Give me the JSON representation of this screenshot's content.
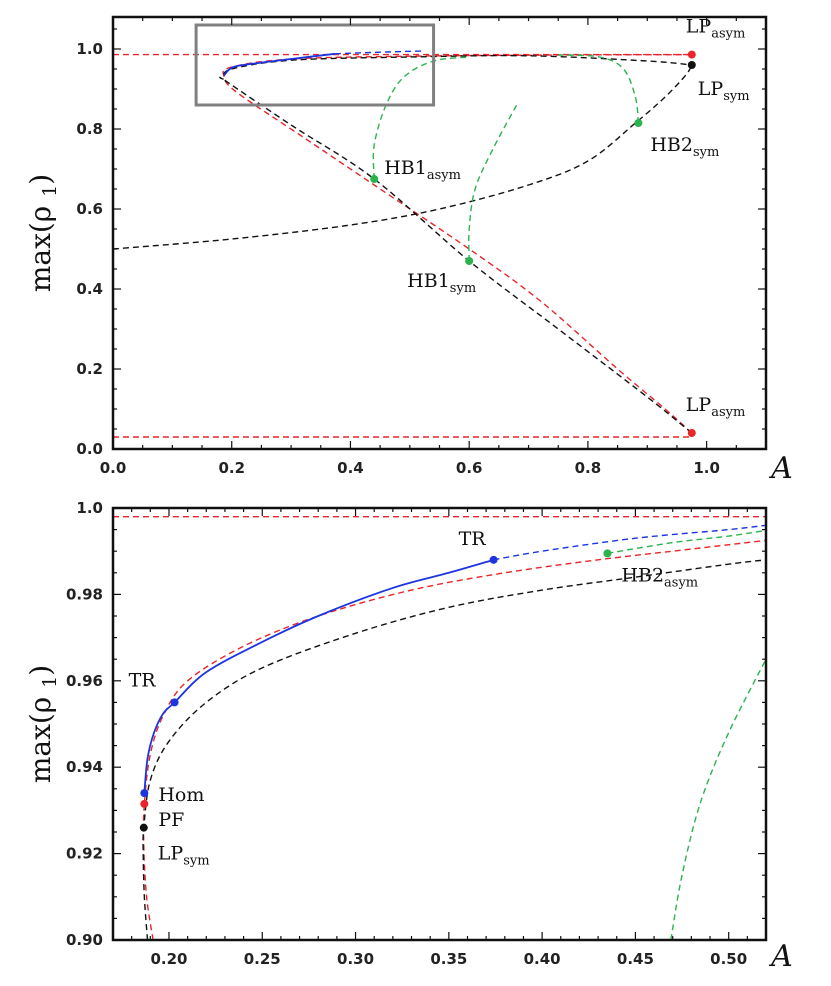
{
  "colors": {
    "red": "#e8252a",
    "black": "#111111",
    "blue": "#1c35e0",
    "green": "#2bb34f",
    "gray": "#808080"
  },
  "chart_data": [
    {
      "type": "line",
      "panel": "top",
      "xlabel": "A",
      "ylabel": "max(ρ1)",
      "xlim": [
        0,
        1.1
      ],
      "ylim": [
        0,
        1.08
      ],
      "xticks": [
        "0.0",
        "0.2",
        "0.4",
        "0.6",
        "0.8",
        "1.0"
      ],
      "yticks": [
        "0.0",
        "0.2",
        "0.4",
        "0.6",
        "0.8",
        "1.0"
      ],
      "inset_box": {
        "x": [
          0.14,
          0.54
        ],
        "y": [
          0.86,
          1.06
        ]
      },
      "series": [
        {
          "name": "asym-upper-dashed",
          "color": "red",
          "style": "dashed",
          "points": [
            [
              0,
              0.986
            ],
            [
              0.2,
              0.986
            ],
            [
              0.6,
              0.986
            ],
            [
              0.975,
              0.986
            ]
          ]
        },
        {
          "name": "asym-lower-dashed",
          "color": "red",
          "style": "dashed",
          "points": [
            [
              0,
              0.03
            ],
            [
              0.5,
              0.03
            ],
            [
              0.975,
              0.03
            ]
          ]
        },
        {
          "name": "asym-branch",
          "color": "red",
          "style": "dashed",
          "points": [
            [
              0.975,
              0.04
            ],
            [
              0.93,
              0.1
            ],
            [
              0.85,
              0.2
            ],
            [
              0.72,
              0.37
            ],
            [
              0.6,
              0.5
            ],
            [
              0.45,
              0.65
            ],
            [
              0.32,
              0.78
            ],
            [
              0.21,
              0.89
            ],
            [
              0.187,
              0.931
            ],
            [
              0.2,
              0.955
            ],
            [
              0.3,
              0.975
            ],
            [
              0.5,
              0.982
            ],
            [
              0.75,
              0.985
            ],
            [
              0.975,
              0.986
            ]
          ]
        },
        {
          "name": "sym-branch",
          "color": "black",
          "style": "dashed",
          "points": [
            [
              0.975,
              0.04
            ],
            [
              0.9,
              0.13
            ],
            [
              0.75,
              0.3
            ],
            [
              0.6,
              0.47
            ],
            [
              0.44,
              0.675
            ],
            [
              0.3,
              0.81
            ],
            [
              0.19,
              0.92
            ],
            [
              0.186,
              0.926
            ],
            [
              0.2,
              0.95
            ],
            [
              0.3,
              0.972
            ],
            [
              0.5,
              0.98
            ],
            [
              0.7,
              0.983
            ],
            [
              0.9,
              0.97
            ],
            [
              0.975,
              0.96
            ]
          ]
        },
        {
          "name": "sym-lower-branch",
          "color": "black",
          "style": "dashed",
          "points": [
            [
              0,
              0.5
            ],
            [
              0.2,
              0.525
            ],
            [
              0.4,
              0.56
            ],
            [
              0.55,
              0.6
            ],
            [
              0.7,
              0.66
            ],
            [
              0.8,
              0.72
            ],
            [
              0.88,
              0.815
            ],
            [
              0.93,
              0.88
            ],
            [
              0.965,
              0.935
            ],
            [
              0.975,
              0.96
            ]
          ]
        },
        {
          "name": "periodic-stable",
          "color": "blue",
          "style": "solid",
          "points": [
            [
              0.187,
              0.934
            ],
            [
              0.203,
              0.955
            ],
            [
              0.25,
              0.966
            ],
            [
              0.3,
              0.975
            ],
            [
              0.374,
              0.988
            ]
          ]
        },
        {
          "name": "periodic-unstable",
          "color": "blue",
          "style": "dashed",
          "points": [
            [
              0.374,
              0.988
            ],
            [
              0.45,
              0.992
            ],
            [
              0.52,
              0.995
            ]
          ]
        },
        {
          "name": "HB1-asym-orbit",
          "color": "green",
          "style": "dashed",
          "points": [
            [
              0.44,
              0.675
            ],
            [
              0.44,
              0.76
            ],
            [
              0.46,
              0.86
            ],
            [
              0.49,
              0.93
            ],
            [
              0.54,
              0.97
            ],
            [
              0.6,
              0.98
            ]
          ]
        },
        {
          "name": "HB1-sym-orbit",
          "color": "green",
          "style": "dashed",
          "points": [
            [
              0.6,
              0.47
            ],
            [
              0.6,
              0.55
            ],
            [
              0.61,
              0.65
            ],
            [
              0.64,
              0.75
            ],
            [
              0.68,
              0.86
            ]
          ]
        },
        {
          "name": "HB2-sym-orbit",
          "color": "green",
          "style": "dashed",
          "points": [
            [
              0.885,
              0.815
            ],
            [
              0.88,
              0.88
            ],
            [
              0.86,
              0.95
            ],
            [
              0.82,
              0.98
            ],
            [
              0.75,
              0.985
            ]
          ]
        }
      ],
      "points": [
        {
          "label": "LP",
          "sub": "asym",
          "x": 0.975,
          "y": 0.986,
          "color": "red"
        },
        {
          "label": "LP",
          "sub": "sym",
          "x": 0.975,
          "y": 0.96,
          "color": "black"
        },
        {
          "label": "HB2",
          "sub": "sym",
          "x": 0.885,
          "y": 0.815,
          "color": "green"
        },
        {
          "label": "HB1",
          "sub": "asym",
          "x": 0.44,
          "y": 0.675,
          "color": "green"
        },
        {
          "label": "HB1",
          "sub": "sym",
          "x": 0.6,
          "y": 0.47,
          "color": "green"
        },
        {
          "label": "LP",
          "sub": "asym",
          "x": 0.975,
          "y": 0.04,
          "color": "red"
        }
      ]
    },
    {
      "type": "line",
      "panel": "bottom",
      "xlabel": "A",
      "ylabel": "max(ρ1)",
      "xlim": [
        0.17,
        0.52
      ],
      "ylim": [
        0.9,
        1.0
      ],
      "xticks": [
        "0.20",
        "0.25",
        "0.30",
        "0.35",
        "0.40",
        "0.45",
        "0.50"
      ],
      "yticks": [
        "0.90",
        "0.92",
        "0.94",
        "0.96",
        "0.98",
        "1.0"
      ],
      "series": [
        {
          "name": "asym-upper-dashed",
          "color": "red",
          "style": "dashed",
          "points": [
            [
              0.17,
              0.998
            ],
            [
              0.52,
              0.998
            ]
          ]
        },
        {
          "name": "asym-branch",
          "color": "red",
          "style": "dashed",
          "points": [
            [
              0.1915,
              0.9
            ],
            [
              0.188,
              0.91
            ],
            [
              0.1865,
              0.922
            ],
            [
              0.1868,
              0.9315
            ],
            [
              0.19,
              0.943
            ],
            [
              0.197,
              0.952
            ],
            [
              0.21,
              0.96
            ],
            [
              0.24,
              0.968
            ],
            [
              0.28,
              0.975
            ],
            [
              0.33,
              0.981
            ],
            [
              0.38,
              0.985
            ],
            [
              0.43,
              0.988
            ],
            [
              0.48,
              0.9905
            ],
            [
              0.52,
              0.9925
            ]
          ]
        },
        {
          "name": "sym-branch",
          "color": "black",
          "style": "dashed",
          "points": [
            [
              0.1885,
              0.9
            ],
            [
              0.1868,
              0.91
            ],
            [
              0.1862,
              0.92
            ],
            [
              0.1865,
              0.926
            ],
            [
              0.19,
              0.937
            ],
            [
              0.2,
              0.946
            ],
            [
              0.22,
              0.955
            ],
            [
              0.25,
              0.963
            ],
            [
              0.3,
              0.971
            ],
            [
              0.35,
              0.977
            ],
            [
              0.4,
              0.981
            ],
            [
              0.45,
              0.984
            ],
            [
              0.5,
              0.987
            ],
            [
              0.52,
              0.988
            ]
          ]
        },
        {
          "name": "periodic-stable",
          "color": "blue",
          "style": "solid",
          "points": [
            [
              0.1868,
              0.934
            ],
            [
              0.1885,
              0.942
            ],
            [
              0.192,
              0.948
            ],
            [
              0.197,
              0.9525
            ],
            [
              0.203,
              0.955
            ],
            [
              0.22,
              0.962
            ],
            [
              0.25,
              0.969
            ],
            [
              0.28,
              0.975
            ],
            [
              0.32,
              0.9815
            ],
            [
              0.35,
              0.985
            ],
            [
              0.374,
              0.988
            ]
          ]
        },
        {
          "name": "periodic-unstable",
          "color": "blue",
          "style": "dashed",
          "points": [
            [
              0.374,
              0.988
            ],
            [
              0.4,
              0.99
            ],
            [
              0.45,
              0.993
            ],
            [
              0.5,
              0.995
            ],
            [
              0.52,
              0.996
            ]
          ]
        },
        {
          "name": "HB2-asym-orbit",
          "color": "green",
          "style": "dashed",
          "points": [
            [
              0.435,
              0.9895
            ],
            [
              0.47,
              0.992
            ],
            [
              0.5,
              0.9935
            ],
            [
              0.52,
              0.9948
            ]
          ]
        },
        {
          "name": "HB-orbit-right",
          "color": "green",
          "style": "dashed",
          "points": [
            [
              0.469,
              0.9
            ],
            [
              0.475,
              0.915
            ],
            [
              0.485,
              0.932
            ],
            [
              0.5,
              0.948
            ],
            [
              0.52,
              0.965
            ]
          ]
        }
      ],
      "points": [
        {
          "label": "TR",
          "sub": "",
          "x": 0.374,
          "y": 0.988,
          "color": "blue"
        },
        {
          "label": "HB2",
          "sub": "asym",
          "x": 0.435,
          "y": 0.9895,
          "color": "green"
        },
        {
          "label": "TR",
          "sub": "",
          "x": 0.203,
          "y": 0.955,
          "color": "blue"
        },
        {
          "label": "Hom",
          "sub": "",
          "x": 0.1868,
          "y": 0.934,
          "color": "blue"
        },
        {
          "label": "PF",
          "sub": "",
          "x": 0.1868,
          "y": 0.9315,
          "color": "red"
        },
        {
          "label": "LP",
          "sub": "sym",
          "x": 0.1865,
          "y": 0.926,
          "color": "black"
        }
      ]
    }
  ]
}
